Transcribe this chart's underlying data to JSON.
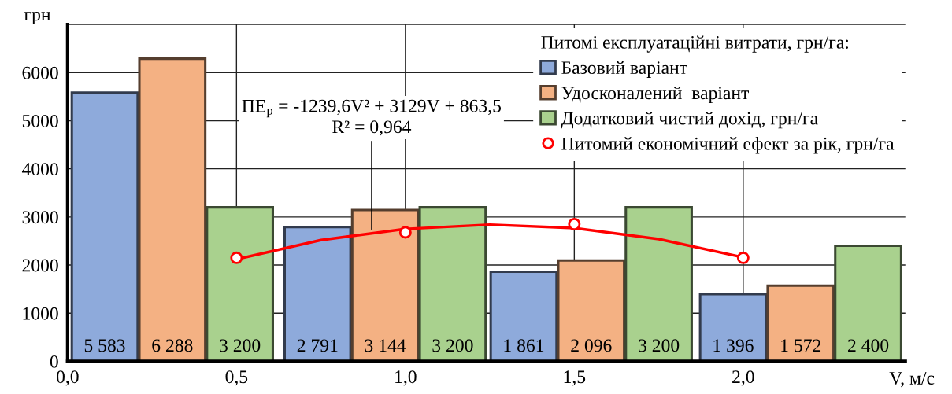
{
  "chart_data": {
    "type": "bar",
    "ylabel": "грн",
    "xlabel": "V, м/с",
    "legend_title": "Питомі експлуатаційні витрати, грн/га:",
    "legend": "top right",
    "grid": true,
    "xlim": [
      0,
      2.48
    ],
    "xticks": [
      {
        "value": 0,
        "label": "0,0"
      },
      {
        "value": 0.5,
        "label": "0,5"
      },
      {
        "value": 1.0,
        "label": "1,0"
      },
      {
        "value": 1.5,
        "label": "1,5"
      },
      {
        "value": 2.0,
        "label": "2,0"
      }
    ],
    "ylim": [
      0,
      7000
    ],
    "yticks": [
      0,
      1000,
      2000,
      3000,
      4000,
      5000,
      6000,
      {
        "value": 7000,
        "label": null
      }
    ],
    "series": [
      {
        "name": "Базовий варіант",
        "color": "#8eaadb",
        "x": [
          0.11,
          0.74,
          1.35,
          1.97
        ],
        "values": [
          5583,
          2791,
          1861,
          1396
        ],
        "value_labels": [
          "5 583",
          "2 791",
          "1 861",
          "1 396"
        ]
      },
      {
        "name": "Удосконалений  варіант",
        "color": "#f4b183",
        "x": [
          0.31,
          0.94,
          1.55,
          2.17
        ],
        "values": [
          6288,
          3144,
          2096,
          1572
        ],
        "value_labels": [
          "6 288",
          "3 144",
          "2 096",
          "1 572"
        ]
      },
      {
        "name": "Додатковий чистий дохід, грн/га",
        "color": "#a9d18e",
        "x": [
          0.51,
          1.14,
          1.75,
          2.37
        ],
        "values": [
          3200,
          3200,
          3200,
          2400
        ],
        "value_labels": [
          "3 200",
          "3 200",
          "3 200",
          "2 400"
        ]
      },
      {
        "name": "Питомий економічний ефект за рік, грн/га",
        "type": "scatter",
        "marker": "circle",
        "color": "#ff0000",
        "x": [
          0.5,
          1.0,
          1.5,
          2.0
        ],
        "values": [
          2150,
          2680,
          2850,
          2150
        ]
      },
      {
        "type": "line",
        "line_style": "solid",
        "color": "#ff0000",
        "x": [
          0.5,
          0.75,
          1.0,
          1.25,
          1.5,
          1.75,
          2.0
        ],
        "values": [
          2120,
          2520,
          2750,
          2840,
          2770,
          2540,
          2160
        ]
      }
    ],
    "annotations": [
      {
        "text": "ПЕ$_{р}$ = -1239,6V² + 3129V + 863,5\nR² = 0,964",
        "x": 0.9,
        "y": 2700
      }
    ]
  }
}
